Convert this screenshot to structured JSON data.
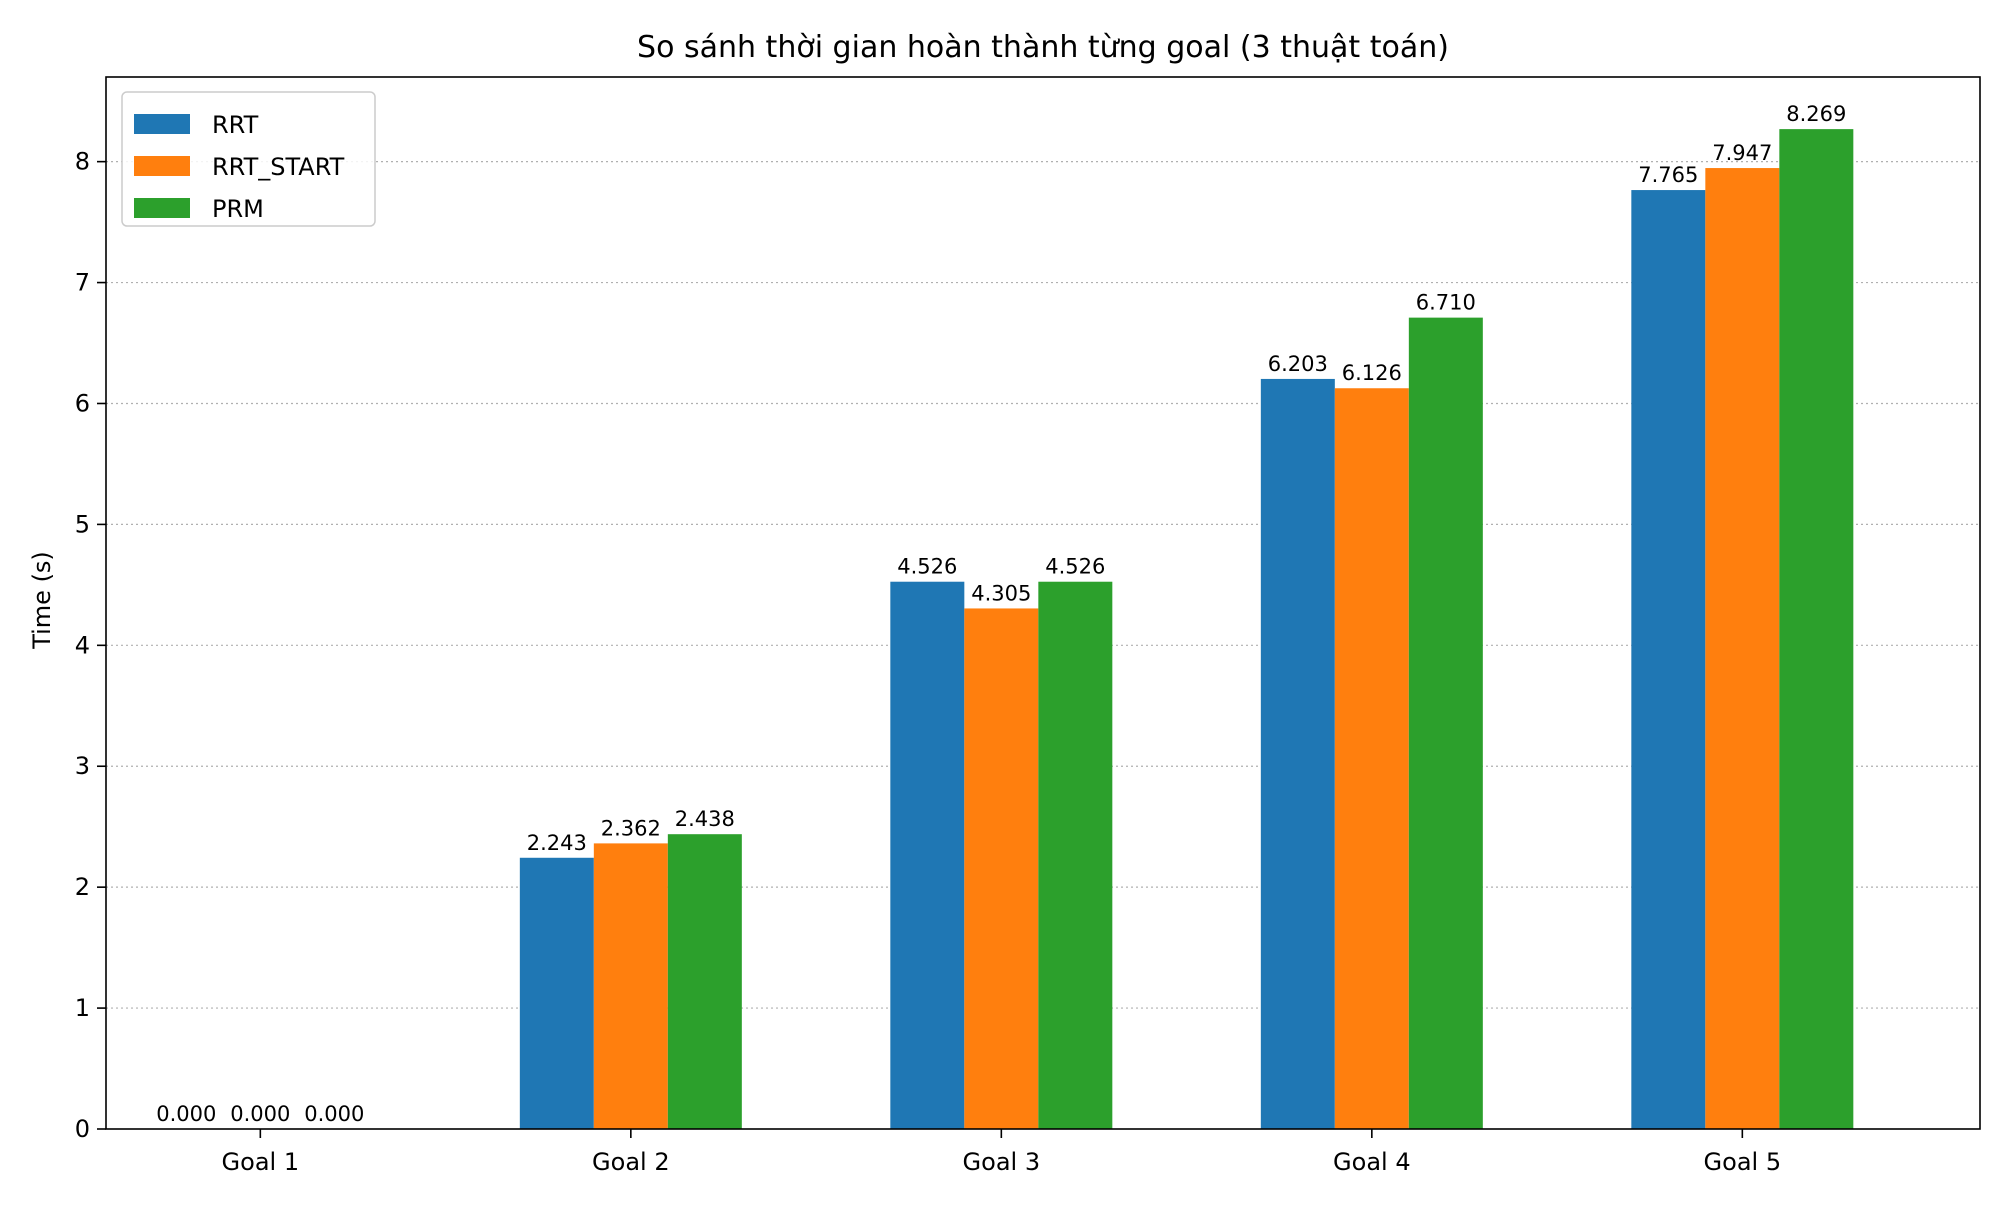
{
  "chart_data": {
    "type": "bar",
    "title": "So sánh thời gian hoàn thành từng goal (3 thuật toán)",
    "xlabel": "",
    "ylabel": "Time (s)",
    "ylim": [
      0,
      8.7
    ],
    "yticks": [
      0,
      1,
      2,
      3,
      4,
      5,
      6,
      7,
      8
    ],
    "grid": "y-dotted",
    "legend_position": "top-left",
    "categories": [
      "Goal 1",
      "Goal 2",
      "Goal 3",
      "Goal 4",
      "Goal 5"
    ],
    "series": [
      {
        "name": "RRT",
        "color": "#1f77b4",
        "values": [
          0.0,
          2.243,
          4.526,
          6.203,
          7.765
        ]
      },
      {
        "name": "RRT_START",
        "color": "#ff7f0e",
        "values": [
          0.0,
          2.362,
          4.305,
          6.126,
          7.947
        ]
      },
      {
        "name": "PRM",
        "color": "#2ca02c",
        "values": [
          0.0,
          2.438,
          4.526,
          6.71,
          8.269
        ]
      }
    ]
  }
}
